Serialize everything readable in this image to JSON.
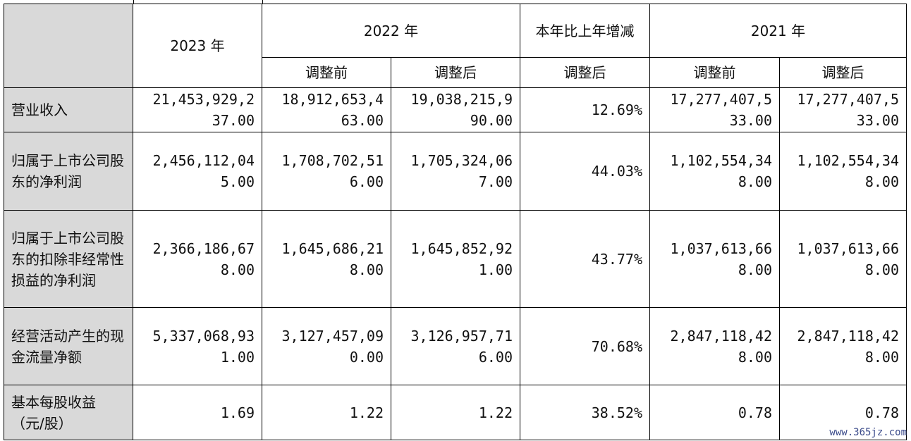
{
  "header": {
    "year_2023": "2023 年",
    "year_2022": "2022 年",
    "change": "本年比上年增减",
    "year_2021": "2021 年",
    "before_adj": "调整前",
    "after_adj": "调整后"
  },
  "rows": [
    {
      "label": "营业收入",
      "v2023": "21,453,929,2\n37.00",
      "v2022_before": "18,912,653,4\n63.00",
      "v2022_after": "19,038,215,9\n90.00",
      "change": "12.69%",
      "v2021_before": "17,277,407,5\n33.00",
      "v2021_after": "17,277,407,5\n33.00"
    },
    {
      "label": "归属于上市公司股东的净利润",
      "v2023": "2,456,112,04\n5.00",
      "v2022_before": "1,708,702,51\n6.00",
      "v2022_after": "1,705,324,06\n7.00",
      "change": "44.03%",
      "v2021_before": "1,102,554,34\n8.00",
      "v2021_after": "1,102,554,34\n8.00"
    },
    {
      "label": "归属于上市公司股东的扣除非经常性损益的净利润",
      "v2023": "2,366,186,67\n8.00",
      "v2022_before": "1,645,686,21\n8.00",
      "v2022_after": "1,645,852,92\n1.00",
      "change": "43.77%",
      "v2021_before": "1,037,613,66\n8.00",
      "v2021_after": "1,037,613,66\n8.00"
    },
    {
      "label": "经营活动产生的现金流量净额",
      "v2023": "5,337,068,93\n1.00",
      "v2022_before": "3,127,457,09\n0.00",
      "v2022_after": "3,126,957,71\n6.00",
      "change": "70.68%",
      "v2021_before": "2,847,118,42\n8.00",
      "v2021_after": "2,847,118,42\n8.00"
    },
    {
      "label": "基本每股收益（元/股）",
      "v2023": "1.69",
      "v2022_before": "1.22",
      "v2022_after": "1.22",
      "change": "38.52%",
      "v2021_before": "0.78",
      "v2021_after": "0.78"
    }
  ],
  "watermark": "www.365jz.com"
}
